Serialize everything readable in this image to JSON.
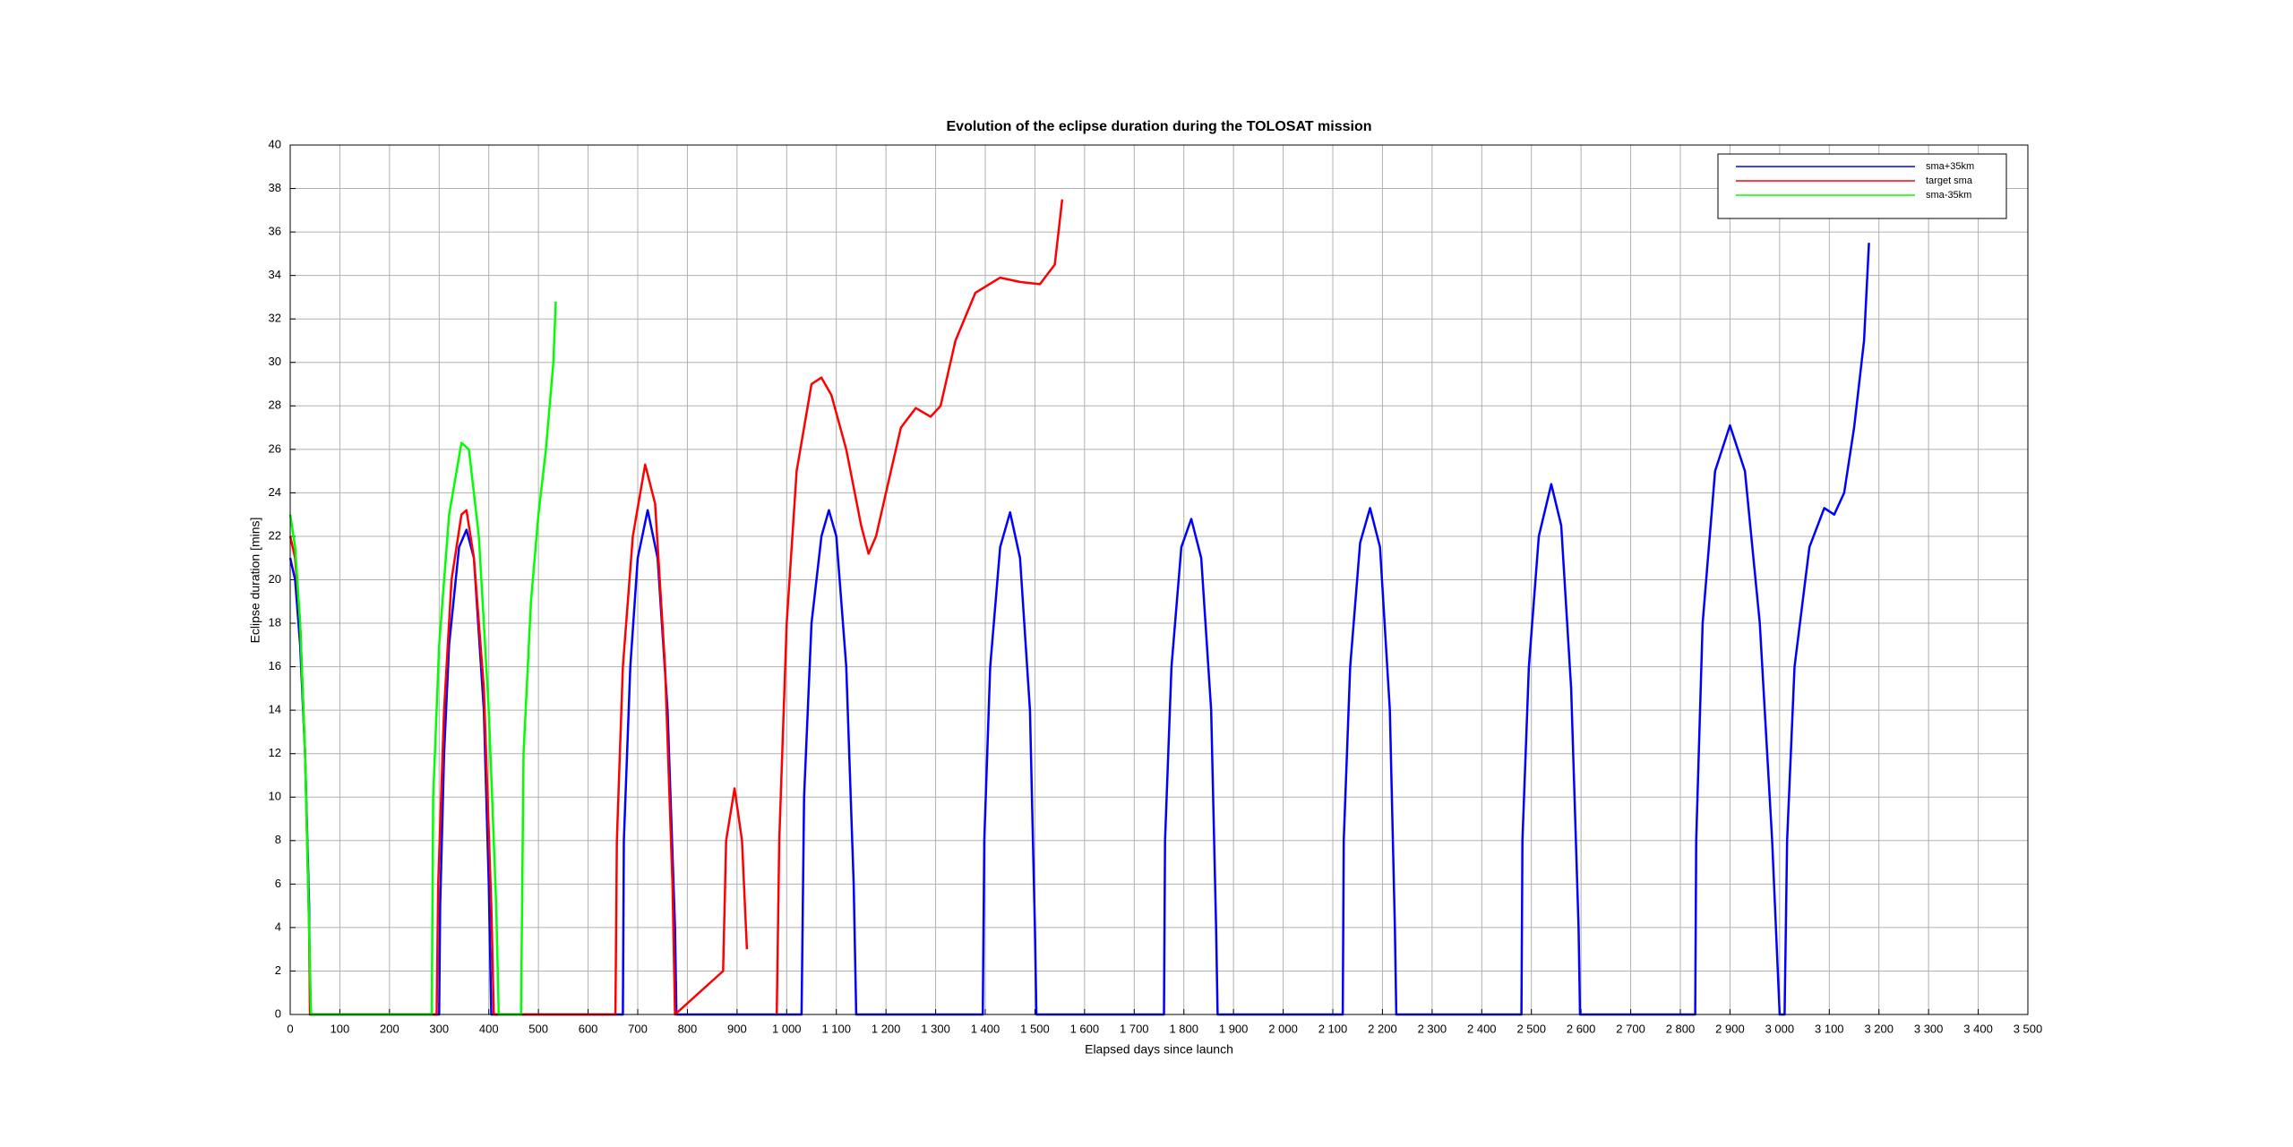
{
  "chart_data": {
    "type": "line",
    "title": "Evolution of the eclipse duration during the TOLOSAT mission",
    "x_label": "Elapsed days since launch",
    "y_label": "Eclipse duration [mins]",
    "xlim": [
      0,
      3500
    ],
    "ylim": [
      0,
      40
    ],
    "grid": true,
    "legend": "upper-right",
    "xticks": [
      0,
      100,
      200,
      300,
      400,
      500,
      600,
      700,
      800,
      900,
      {
        "value": 1000,
        "label": "1 000"
      },
      {
        "value": 1100,
        "label": "1 100"
      },
      {
        "value": 1200,
        "label": "1 200"
      },
      {
        "value": 1300,
        "label": "1 300"
      },
      {
        "value": 1400,
        "label": "1 400"
      },
      {
        "value": 1500,
        "label": "1 500"
      },
      {
        "value": 1600,
        "label": "1 600"
      },
      {
        "value": 1700,
        "label": "1 700"
      },
      {
        "value": 1800,
        "label": "1 800"
      },
      {
        "value": 1900,
        "label": "1 900"
      },
      {
        "value": 2000,
        "label": "2 000"
      },
      {
        "value": 2100,
        "label": "2 100"
      },
      {
        "value": 2200,
        "label": "2 200"
      },
      {
        "value": 2300,
        "label": "2 300"
      },
      {
        "value": 2400,
        "label": "2 400"
      },
      {
        "value": 2500,
        "label": "2 500"
      },
      {
        "value": 2600,
        "label": "2 600"
      },
      {
        "value": 2700,
        "label": "2 700"
      },
      {
        "value": 2800,
        "label": "2 800"
      },
      {
        "value": 2900,
        "label": "2 900"
      },
      {
        "value": 3000,
        "label": "3 000"
      },
      {
        "value": 3100,
        "label": "3 100"
      },
      {
        "value": 3200,
        "label": "3 200"
      },
      {
        "value": 3300,
        "label": "3 300"
      },
      {
        "value": 3400,
        "label": "3 400"
      },
      {
        "value": 3500,
        "label": "3 500"
      }
    ],
    "yticks": [
      0,
      2,
      4,
      6,
      8,
      10,
      12,
      14,
      16,
      18,
      20,
      22,
      24,
      26,
      28,
      30,
      32,
      34,
      36,
      38,
      40
    ],
    "series": [
      {
        "name": "sma+35km",
        "color": "#0000ff",
        "x": [
          0,
          10,
          20,
          30,
          38,
          40,
          300,
          302,
          310,
          320,
          340,
          355,
          370,
          390,
          400,
          405,
          670,
          672,
          685,
          700,
          720,
          740,
          760,
          775,
          778,
          1030,
          1035,
          1050,
          1070,
          1085,
          1100,
          1120,
          1135,
          1140,
          1395,
          1398,
          1410,
          1430,
          1450,
          1470,
          1490,
          1500,
          1503,
          1760,
          1762,
          1775,
          1795,
          1815,
          1835,
          1855,
          1865,
          1868,
          2120,
          2122,
          2135,
          2155,
          2175,
          2195,
          2215,
          2225,
          2228,
          2480,
          2482,
          2495,
          2515,
          2540,
          2560,
          2580,
          2595,
          2598,
          2830,
          2832,
          2845,
          2870,
          2900,
          2930,
          2960,
          2985,
          3000,
          3010,
          3015,
          3030,
          3060,
          3090,
          3110,
          3130,
          3150,
          3170,
          3180
        ],
        "values": [
          21,
          20,
          17,
          12,
          5,
          0,
          0,
          5,
          12,
          17,
          21.5,
          22.3,
          21,
          14,
          6,
          0,
          0,
          8,
          16,
          21,
          23.2,
          21,
          14,
          4,
          0,
          0,
          10,
          18,
          22,
          23.2,
          22,
          16,
          6,
          0,
          0,
          8,
          16,
          21.5,
          23.1,
          21,
          14,
          4,
          0,
          0,
          8,
          16,
          21.5,
          22.8,
          21,
          14,
          4,
          0,
          0,
          8,
          16,
          21.7,
          23.3,
          21.5,
          14,
          4,
          0,
          0,
          8,
          16,
          22,
          24.4,
          22.5,
          15,
          4,
          0,
          0,
          8,
          18,
          25,
          27.1,
          25,
          18,
          8,
          0,
          0,
          8,
          16,
          21.5,
          23.3,
          23,
          24,
          27,
          31,
          35.5
        ]
      },
      {
        "name": "target sma",
        "color": "#ff0000",
        "x": [
          0,
          10,
          20,
          30,
          38,
          40,
          295,
          298,
          310,
          325,
          345,
          355,
          370,
          390,
          405,
          410,
          655,
          658,
          670,
          690,
          715,
          735,
          755,
          770,
          775,
          872,
          878,
          895,
          910,
          920,
          950,
          980,
          985,
          1000,
          1020,
          1050,
          1070,
          1090,
          1120,
          1150,
          1165,
          1180,
          1200,
          1230,
          1260,
          1290,
          1310,
          1340,
          1380,
          1430,
          1470,
          1510,
          1540,
          1555
        ],
        "values": [
          22,
          21,
          18,
          12,
          4,
          0,
          0,
          6,
          14,
          20,
          23,
          23.2,
          21,
          15,
          5,
          0,
          0,
          8,
          16,
          22,
          25.3,
          23.5,
          16,
          6,
          0,
          2,
          8,
          10.4,
          8,
          3,
          null,
          0,
          8,
          18,
          25,
          29,
          29.3,
          28.5,
          26,
          22.5,
          21.2,
          22,
          24,
          27,
          27.9,
          27.5,
          28,
          31,
          33.2,
          33.9,
          33.7,
          33.6,
          34.5,
          37.5
        ]
      },
      {
        "name": "sma-35km",
        "color": "#00ff00",
        "x": [
          0,
          10,
          20,
          30,
          38,
          42,
          285,
          288,
          300,
          320,
          345,
          360,
          380,
          400,
          415,
          420,
          465,
          470,
          485,
          500,
          515,
          530,
          535
        ],
        "values": [
          23,
          21.5,
          18,
          12,
          4,
          0,
          0,
          10,
          17,
          23,
          26.3,
          26,
          22,
          14,
          5,
          0,
          0,
          12,
          19,
          23,
          26,
          30,
          32.8
        ]
      }
    ]
  }
}
